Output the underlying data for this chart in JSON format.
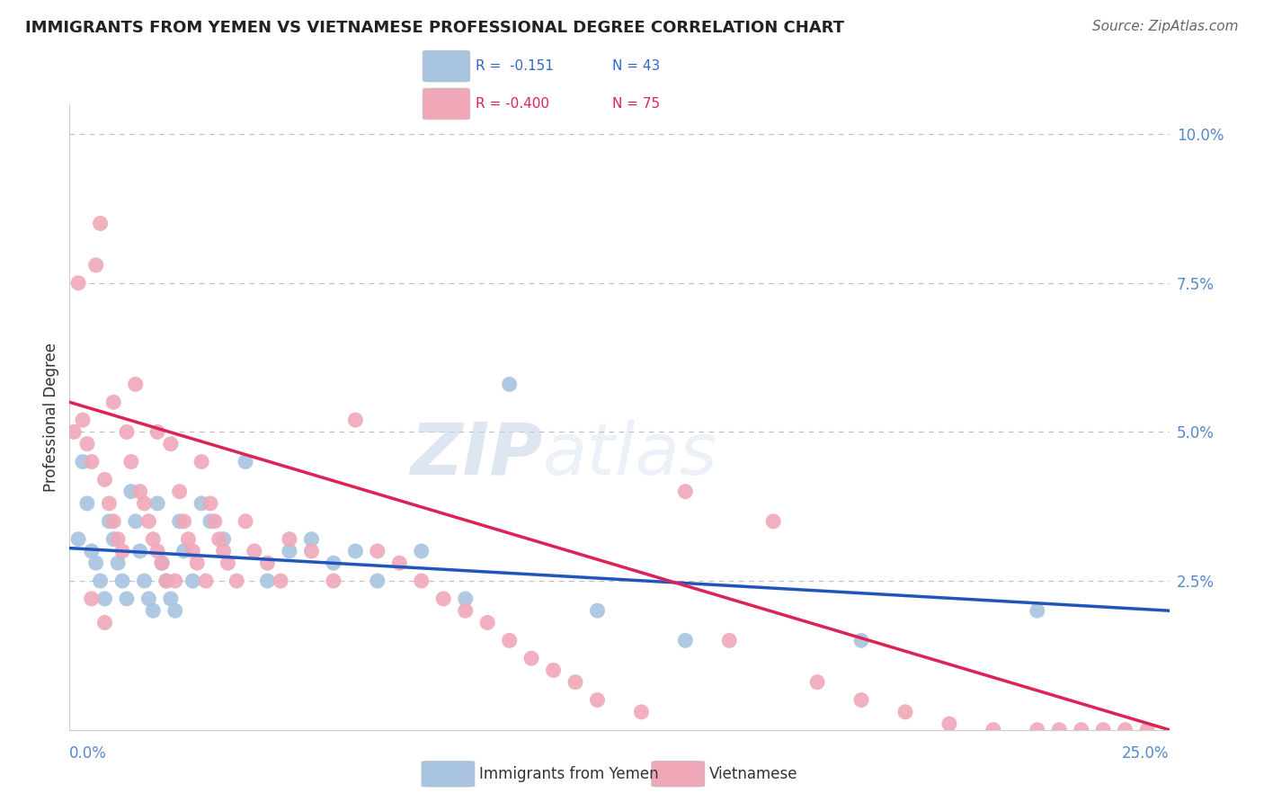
{
  "title": "IMMIGRANTS FROM YEMEN VS VIETNAMESE PROFESSIONAL DEGREE CORRELATION CHART",
  "source": "Source: ZipAtlas.com",
  "ylabel": "Professional Degree",
  "xmin": 0.0,
  "xmax": 25.0,
  "ymin": 0.0,
  "ymax": 10.5,
  "blue_color": "#a8c4e0",
  "pink_color": "#f0a8b8",
  "blue_line_color": "#2255bb",
  "pink_line_color": "#dd2255",
  "watermark_zip": "ZIP",
  "watermark_atlas": "atlas",
  "blue_label": "Immigrants from Yemen",
  "pink_label": "Vietnamese",
  "legend_blue_r": "R =  -0.151",
  "legend_blue_n": "N = 43",
  "legend_pink_r": "R = -0.400",
  "legend_pink_n": "N = 75",
  "blue_x": [
    0.2,
    0.3,
    0.4,
    0.5,
    0.6,
    0.7,
    0.8,
    0.9,
    1.0,
    1.1,
    1.2,
    1.3,
    1.4,
    1.5,
    1.6,
    1.7,
    1.8,
    1.9,
    2.0,
    2.1,
    2.2,
    2.3,
    2.4,
    2.5,
    2.6,
    2.8,
    3.0,
    3.2,
    3.5,
    4.0,
    4.5,
    5.0,
    5.5,
    6.0,
    6.5,
    7.0,
    8.0,
    9.0,
    10.0,
    12.0,
    14.0,
    18.0,
    22.0
  ],
  "blue_y": [
    3.2,
    4.5,
    3.8,
    3.0,
    2.8,
    2.5,
    2.2,
    3.5,
    3.2,
    2.8,
    2.5,
    2.2,
    4.0,
    3.5,
    3.0,
    2.5,
    2.2,
    2.0,
    3.8,
    2.8,
    2.5,
    2.2,
    2.0,
    3.5,
    3.0,
    2.5,
    3.8,
    3.5,
    3.2,
    4.5,
    2.5,
    3.0,
    3.2,
    2.8,
    3.0,
    2.5,
    3.0,
    2.2,
    5.8,
    2.0,
    1.5,
    1.5,
    2.0
  ],
  "pink_x": [
    0.1,
    0.2,
    0.3,
    0.4,
    0.5,
    0.6,
    0.7,
    0.8,
    0.9,
    1.0,
    1.0,
    1.1,
    1.2,
    1.3,
    1.4,
    1.5,
    1.6,
    1.7,
    1.8,
    1.9,
    2.0,
    2.0,
    2.1,
    2.2,
    2.3,
    2.4,
    2.5,
    2.6,
    2.7,
    2.8,
    2.9,
    3.0,
    3.1,
    3.2,
    3.3,
    3.4,
    3.5,
    3.6,
    3.8,
    4.0,
    4.2,
    4.5,
    4.8,
    5.0,
    5.5,
    6.0,
    6.5,
    7.0,
    7.5,
    8.0,
    8.5,
    9.0,
    9.5,
    10.0,
    10.5,
    11.0,
    11.5,
    12.0,
    13.0,
    14.0,
    15.0,
    16.0,
    17.0,
    18.0,
    19.0,
    20.0,
    21.0,
    22.0,
    22.5,
    23.0,
    23.5,
    24.0,
    24.5,
    0.5,
    0.8
  ],
  "pink_y": [
    5.0,
    7.5,
    5.2,
    4.8,
    4.5,
    7.8,
    8.5,
    4.2,
    3.8,
    3.5,
    5.5,
    3.2,
    3.0,
    5.0,
    4.5,
    5.8,
    4.0,
    3.8,
    3.5,
    3.2,
    3.0,
    5.0,
    2.8,
    2.5,
    4.8,
    2.5,
    4.0,
    3.5,
    3.2,
    3.0,
    2.8,
    4.5,
    2.5,
    3.8,
    3.5,
    3.2,
    3.0,
    2.8,
    2.5,
    3.5,
    3.0,
    2.8,
    2.5,
    3.2,
    3.0,
    2.5,
    5.2,
    3.0,
    2.8,
    2.5,
    2.2,
    2.0,
    1.8,
    1.5,
    1.2,
    1.0,
    0.8,
    0.5,
    0.3,
    4.0,
    1.5,
    3.5,
    0.8,
    0.5,
    0.3,
    0.1,
    0.0,
    0.0,
    0.0,
    0.0,
    0.0,
    0.0,
    0.0,
    2.2,
    1.8
  ]
}
